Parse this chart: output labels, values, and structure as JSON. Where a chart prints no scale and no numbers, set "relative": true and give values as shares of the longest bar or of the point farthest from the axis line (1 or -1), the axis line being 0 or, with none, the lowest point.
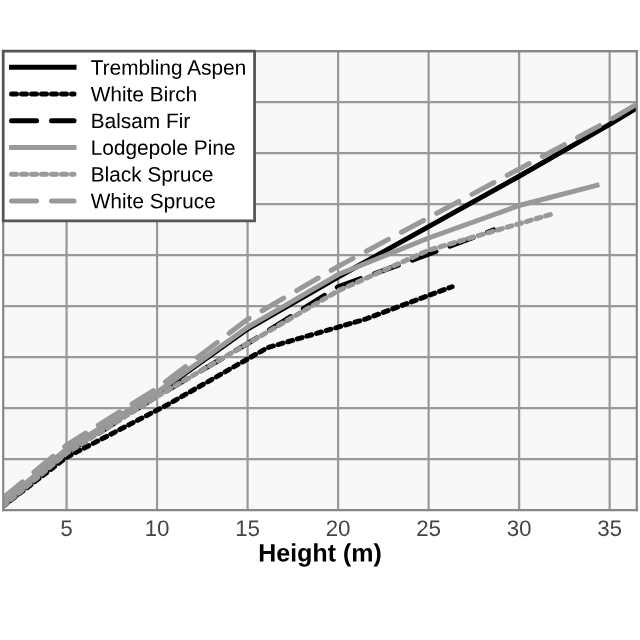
{
  "chart_data": {
    "type": "line",
    "xlabel": "Height (m)",
    "relative": true,
    "xlim": [
      1.5,
      36.5
    ],
    "xticks": [
      5,
      10,
      15,
      20,
      25,
      30,
      35
    ],
    "grid": true,
    "legend": "top left",
    "marker": "none",
    "series": [
      {
        "name": "Trembling Aspen",
        "color": "#000000",
        "line_style": "solid",
        "x": [
          1.5,
          5,
          10,
          15,
          20,
          25,
          30,
          35,
          36.5
        ],
        "values": [
          0.015,
          0.149,
          0.287,
          0.446,
          0.574,
          0.698,
          0.822,
          0.95,
          0.99
        ]
      },
      {
        "name": "White Birch",
        "color": "#000000",
        "line_style": "dotted",
        "x": [
          1.5,
          5,
          10.6,
          16.1,
          21.5,
          26.3
        ],
        "values": [
          0.01,
          0.13,
          0.26,
          0.4,
          0.47,
          0.55
        ]
      },
      {
        "name": "Balsam Fir",
        "color": "#000000",
        "line_style": "dashed",
        "x": [
          1.5,
          5,
          10,
          15,
          20,
          25,
          28.6
        ],
        "values": [
          0.01,
          0.14,
          0.28,
          0.41,
          0.55,
          0.63,
          0.69
        ]
      },
      {
        "name": "Lodgepole Pine",
        "color": "#999999",
        "line_style": "solid",
        "x": [
          1.5,
          5,
          10,
          15,
          20,
          25,
          30,
          34.3
        ],
        "values": [
          0.02,
          0.15,
          0.29,
          0.45,
          0.58,
          0.67,
          0.75,
          0.8
        ]
      },
      {
        "name": "Black Spruce",
        "color": "#999999",
        "line_style": "dotted",
        "x": [
          1.5,
          5,
          10,
          15,
          20,
          25,
          31.9
        ],
        "values": [
          0.01,
          0.14,
          0.28,
          0.41,
          0.54,
          0.64,
          0.73
        ]
      },
      {
        "name": "White Spruce",
        "color": "#999999",
        "line_style": "dashed",
        "x": [
          1.5,
          5,
          10,
          15,
          20,
          25,
          30,
          35,
          36.5
        ],
        "values": [
          0.03,
          0.16,
          0.3,
          0.47,
          0.6,
          0.72,
          0.84,
          0.96,
          1.0
        ]
      }
    ]
  }
}
